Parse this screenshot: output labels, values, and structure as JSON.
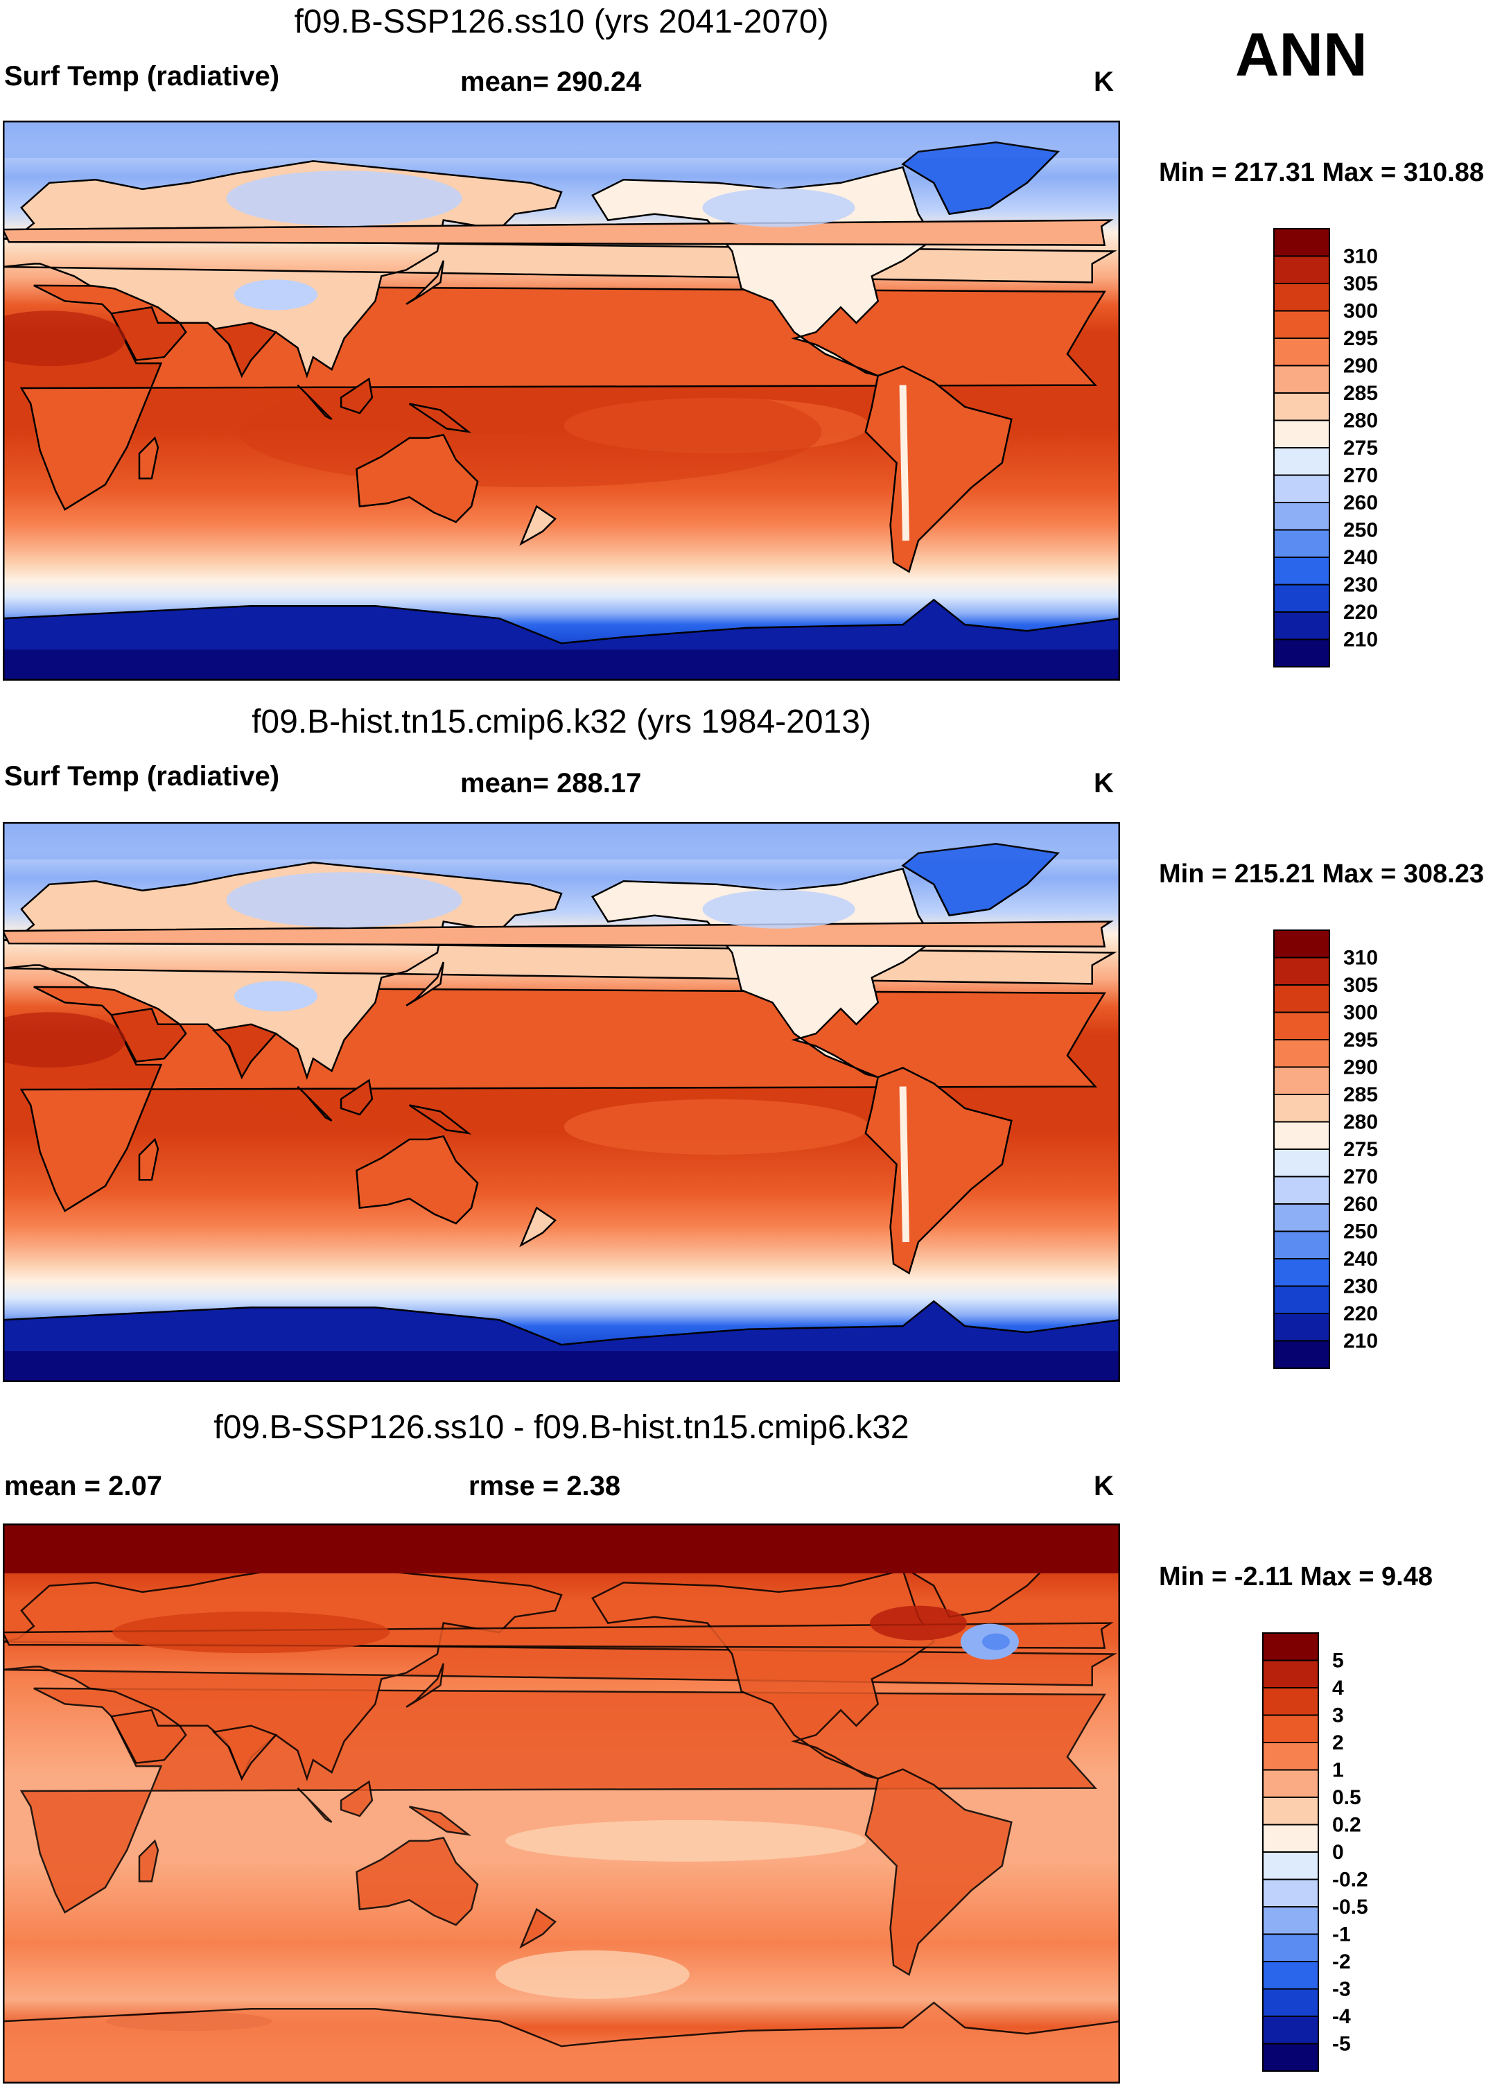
{
  "season_label": "ANN",
  "colors": {
    "abs_scale": [
      "#06026f",
      "#0c1ea4",
      "#1543cf",
      "#2a66ec",
      "#5a8cf2",
      "#8daff6",
      "#bed2fb",
      "#deebfd",
      "#fef0e2",
      "#fccfae",
      "#fbab83",
      "#f7814f",
      "#ea5b28",
      "#d63d12",
      "#b8210b",
      "#7e0000"
    ],
    "diff_scale": [
      "#06026f",
      "#0c1ea4",
      "#1543cf",
      "#2a66ec",
      "#5a8cf2",
      "#8daff6",
      "#bed2fb",
      "#deebfd",
      "#fef0e2",
      "#fccfae",
      "#fbab83",
      "#f7814f",
      "#ea5b28",
      "#d63d12",
      "#b8210b",
      "#7e0000"
    ],
    "ocean_warm": "#e0501f",
    "land_outline": "#000000"
  },
  "panels": [
    {
      "title": "f09.B-SSP126.ss10 (yrs 2041-2070)",
      "left_label": "Surf Temp (radiative)",
      "center_label": "mean= 290.24",
      "units": "K",
      "minmax": "Min = 217.31 Max = 310.88"
    },
    {
      "title": "f09.B-hist.tn15.cmip6.k32 (yrs 1984-2013)",
      "left_label": "Surf Temp (radiative)",
      "center_label": "mean= 288.17",
      "units": "K",
      "minmax": "Min = 215.21 Max = 308.23"
    },
    {
      "title": "f09.B-SSP126.ss10 - f09.B-hist.tn15.cmip6.k32",
      "left_label": "mean =   2.07",
      "center_label": "rmse =   2.38",
      "units": "K",
      "minmax": "Min =  -2.11 Max =   9.48"
    }
  ],
  "chart_data": [
    {
      "type": "heatmap",
      "title": "f09.B-SSP126.ss10 (yrs 2041-2070)",
      "variable": "Surf Temp (radiative)",
      "units": "K",
      "mean": 290.24,
      "min": 217.31,
      "max": 310.88,
      "colorbar_levels": [
        "210",
        "220",
        "230",
        "240",
        "250",
        "260",
        "270",
        "275",
        "280",
        "285",
        "290",
        "295",
        "300",
        "305",
        "310"
      ]
    },
    {
      "type": "heatmap",
      "title": "f09.B-hist.tn15.cmip6.k32 (yrs 1984-2013)",
      "variable": "Surf Temp (radiative)",
      "units": "K",
      "mean": 288.17,
      "min": 215.21,
      "max": 308.23,
      "colorbar_levels": [
        "210",
        "220",
        "230",
        "240",
        "250",
        "260",
        "270",
        "275",
        "280",
        "285",
        "290",
        "295",
        "300",
        "305",
        "310"
      ]
    },
    {
      "type": "heatmap",
      "title": "f09.B-SSP126.ss10 - f09.B-hist.tn15.cmip6.k32",
      "units": "K",
      "mean": 2.07,
      "rmse": 2.38,
      "min": -2.11,
      "max": 9.48,
      "colorbar_levels": [
        "-5",
        "-4",
        "-3",
        "-2",
        "-1",
        "-0.5",
        "-0.2",
        "0",
        "0.2",
        "0.5",
        "1",
        "2",
        "3",
        "4",
        "5"
      ]
    }
  ]
}
